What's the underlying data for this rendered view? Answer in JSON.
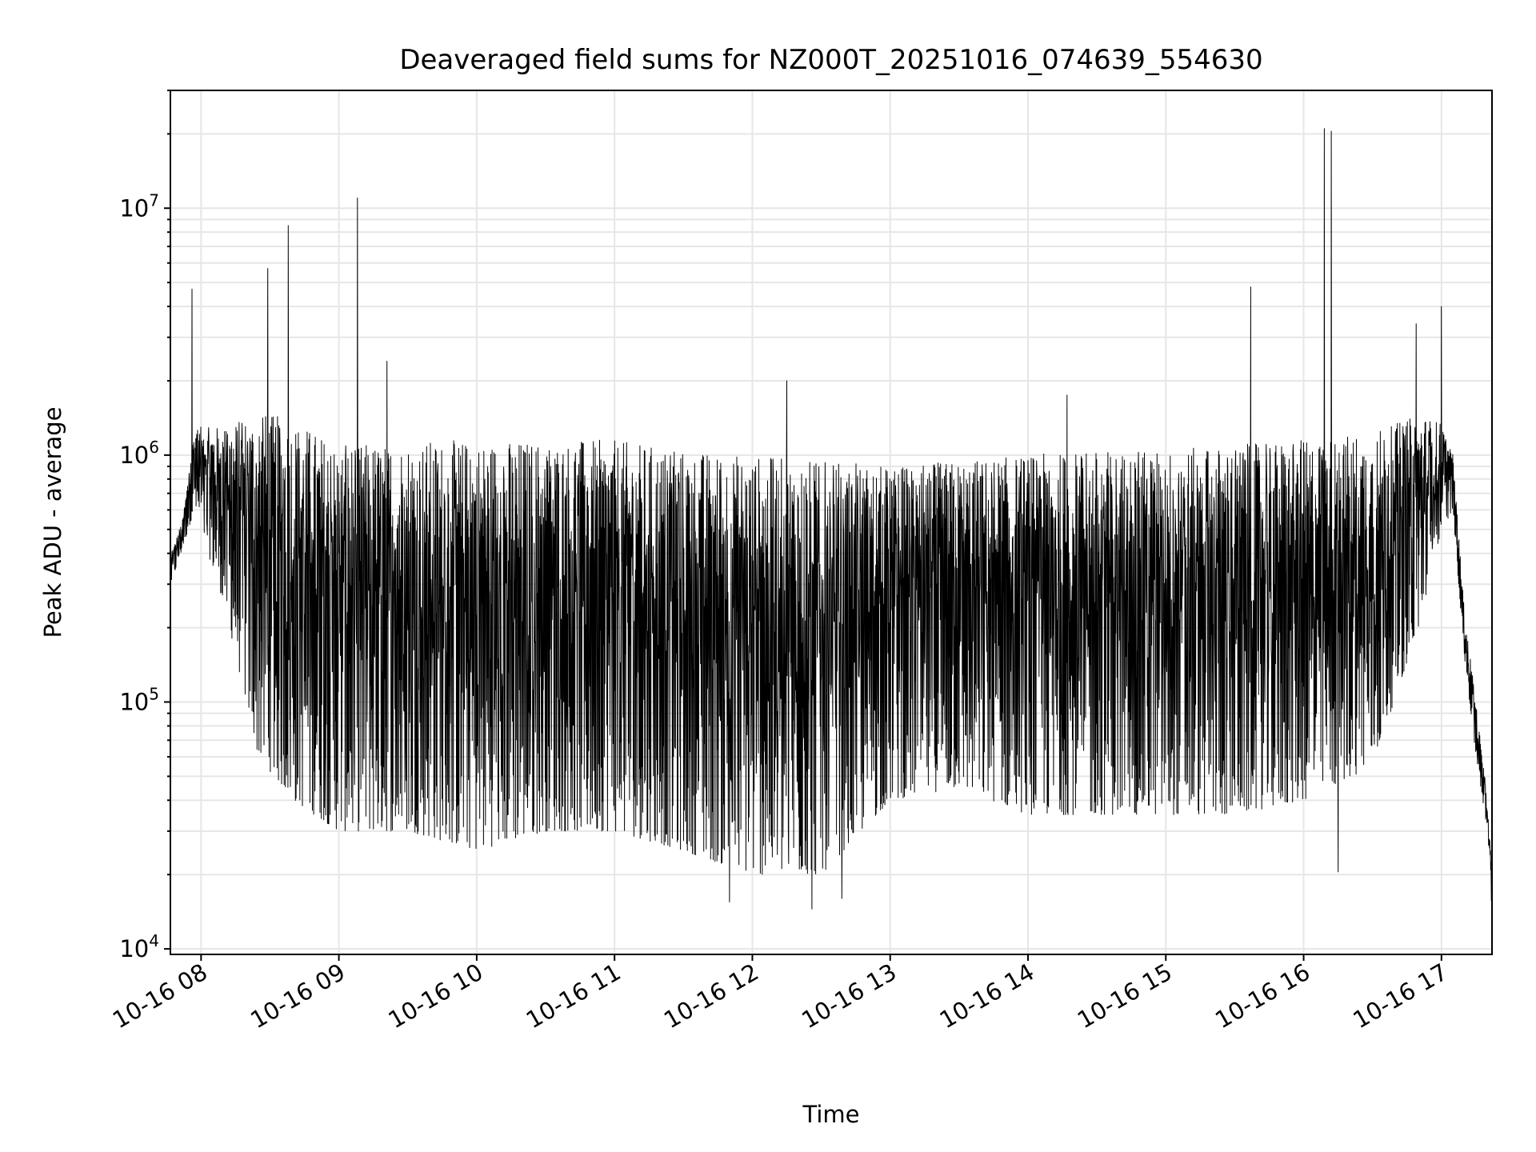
{
  "chart_data": {
    "type": "line",
    "title": "Deaveraged field sums for NZ000T_20251016_074639_554630",
    "xlabel": "Time",
    "ylabel": "Peak ADU - average",
    "yscale": "log",
    "grid": true,
    "line_color": "#000000",
    "xlim": [
      "2025-10-16T07:46:39",
      "2025-10-16T17:22:00"
    ],
    "ylim": [
      9500,
      30000000
    ],
    "xticks": [
      "2025-10-16T08:00",
      "2025-10-16T09:00",
      "2025-10-16T10:00",
      "2025-10-16T11:00",
      "2025-10-16T12:00",
      "2025-10-16T13:00",
      "2025-10-16T14:00",
      "2025-10-16T15:00",
      "2025-10-16T16:00",
      "2025-10-16T17:00"
    ],
    "xtick_labels": [
      "10-16 08",
      "10-16 09",
      "10-16 10",
      "10-16 11",
      "10-16 12",
      "10-16 13",
      "10-16 14",
      "10-16 15",
      "10-16 16",
      "10-16 17"
    ],
    "yticks": [
      10000,
      100000,
      1000000,
      10000000
    ],
    "ytick_labels": [
      {
        "base": "10",
        "exp": "4"
      },
      {
        "base": "10",
        "exp": "5"
      },
      {
        "base": "10",
        "exp": "6"
      },
      {
        "base": "10",
        "exp": "7"
      }
    ],
    "envelope": {
      "x": [
        "2025-10-16T07:47",
        "2025-10-16T07:52",
        "2025-10-16T07:57",
        "2025-10-16T08:10",
        "2025-10-16T08:25",
        "2025-10-16T08:40",
        "2025-10-16T09:00",
        "2025-10-16T09:30",
        "2025-10-16T10:00",
        "2025-10-16T10:30",
        "2025-10-16T11:00",
        "2025-10-16T11:30",
        "2025-10-16T12:00",
        "2025-10-16T12:30",
        "2025-10-16T13:00",
        "2025-10-16T13:30",
        "2025-10-16T14:00",
        "2025-10-16T14:30",
        "2025-10-16T15:00",
        "2025-10-16T15:30",
        "2025-10-16T16:00",
        "2025-10-16T16:30",
        "2025-10-16T16:50",
        "2025-10-16T17:00",
        "2025-10-16T17:05",
        "2025-10-16T17:10",
        "2025-10-16T17:15",
        "2025-10-16T17:20",
        "2025-10-16T17:22"
      ],
      "upper": [
        400000,
        550000,
        1300000,
        1300000,
        1500000,
        1400000,
        1100000,
        1150000,
        1150000,
        1150000,
        1150000,
        1050000,
        1000000,
        950000,
        900000,
        950000,
        1000000,
        1050000,
        1050000,
        1100000,
        1150000,
        1250000,
        1450000,
        1350000,
        1000000,
        230000,
        100000,
        40000,
        20000
      ],
      "lower": [
        300000,
        420000,
        600000,
        250000,
        60000,
        40000,
        30000,
        30000,
        25000,
        30000,
        30000,
        25000,
        20000,
        20000,
        40000,
        45000,
        35000,
        35000,
        35000,
        35000,
        40000,
        55000,
        200000,
        500000,
        600000,
        150000,
        60000,
        30000,
        14000
      ]
    },
    "spikes": [
      {
        "x": "2025-10-16T07:56",
        "y": 4700000
      },
      {
        "x": "2025-10-16T08:29",
        "y": 5700000
      },
      {
        "x": "2025-10-16T08:38",
        "y": 8500000
      },
      {
        "x": "2025-10-16T09:08",
        "y": 11000000
      },
      {
        "x": "2025-10-16T09:21",
        "y": 2400000
      },
      {
        "x": "2025-10-16T12:15",
        "y": 2000000
      },
      {
        "x": "2025-10-16T14:17",
        "y": 1750000
      },
      {
        "x": "2025-10-16T15:37",
        "y": 4800000
      },
      {
        "x": "2025-10-16T16:09",
        "y": 21000000
      },
      {
        "x": "2025-10-16T16:12",
        "y": 20500000
      },
      {
        "x": "2025-10-16T16:49",
        "y": 3400000
      },
      {
        "x": "2025-10-16T17:00",
        "y": 4000000
      }
    ],
    "dips": [
      {
        "x": "2025-10-16T11:50",
        "y": 15500
      },
      {
        "x": "2025-10-16T12:26",
        "y": 14500
      },
      {
        "x": "2025-10-16T12:39",
        "y": 16000
      },
      {
        "x": "2025-10-16T16:15",
        "y": 20500
      }
    ]
  }
}
